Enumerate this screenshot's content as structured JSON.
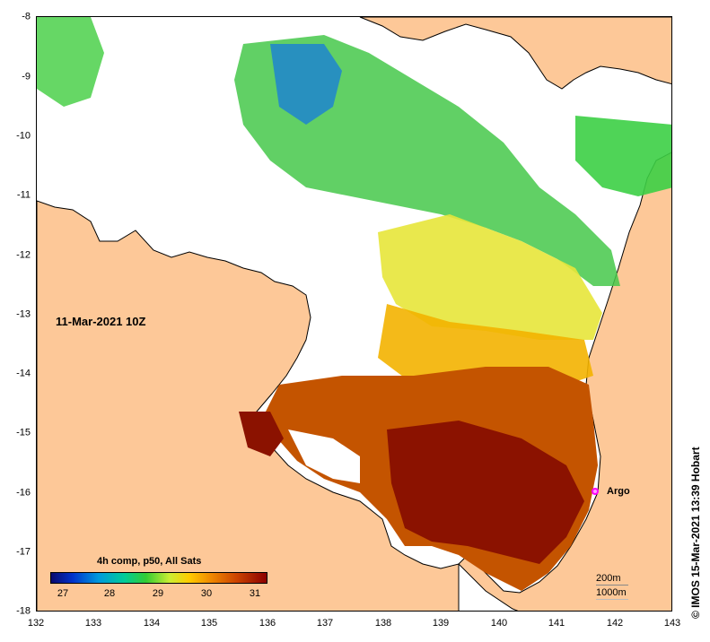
{
  "map": {
    "date_label": "11-Mar-2021 10Z",
    "x_ticks": [
      "132",
      "133",
      "134",
      "135",
      "136",
      "137",
      "138",
      "139",
      "140",
      "141",
      "142",
      "143"
    ],
    "y_ticks": [
      "-8",
      "-9",
      "-10",
      "-11",
      "-12",
      "-13",
      "-14",
      "-15",
      "-16",
      "-17",
      "-18"
    ],
    "land_color": "#fdc898",
    "coast_color": "#000000"
  },
  "legend": {
    "title": "4h comp, p50, All Sats",
    "ticks": [
      "27",
      "28",
      "29",
      "30",
      "31"
    ]
  },
  "argo": {
    "label": "Argo",
    "color": "#ff00ff"
  },
  "contours": {
    "shallow": "200m",
    "deep": "1000m"
  },
  "credit": "© IMOS 15-Mar-2021 13:39 Hobart"
}
